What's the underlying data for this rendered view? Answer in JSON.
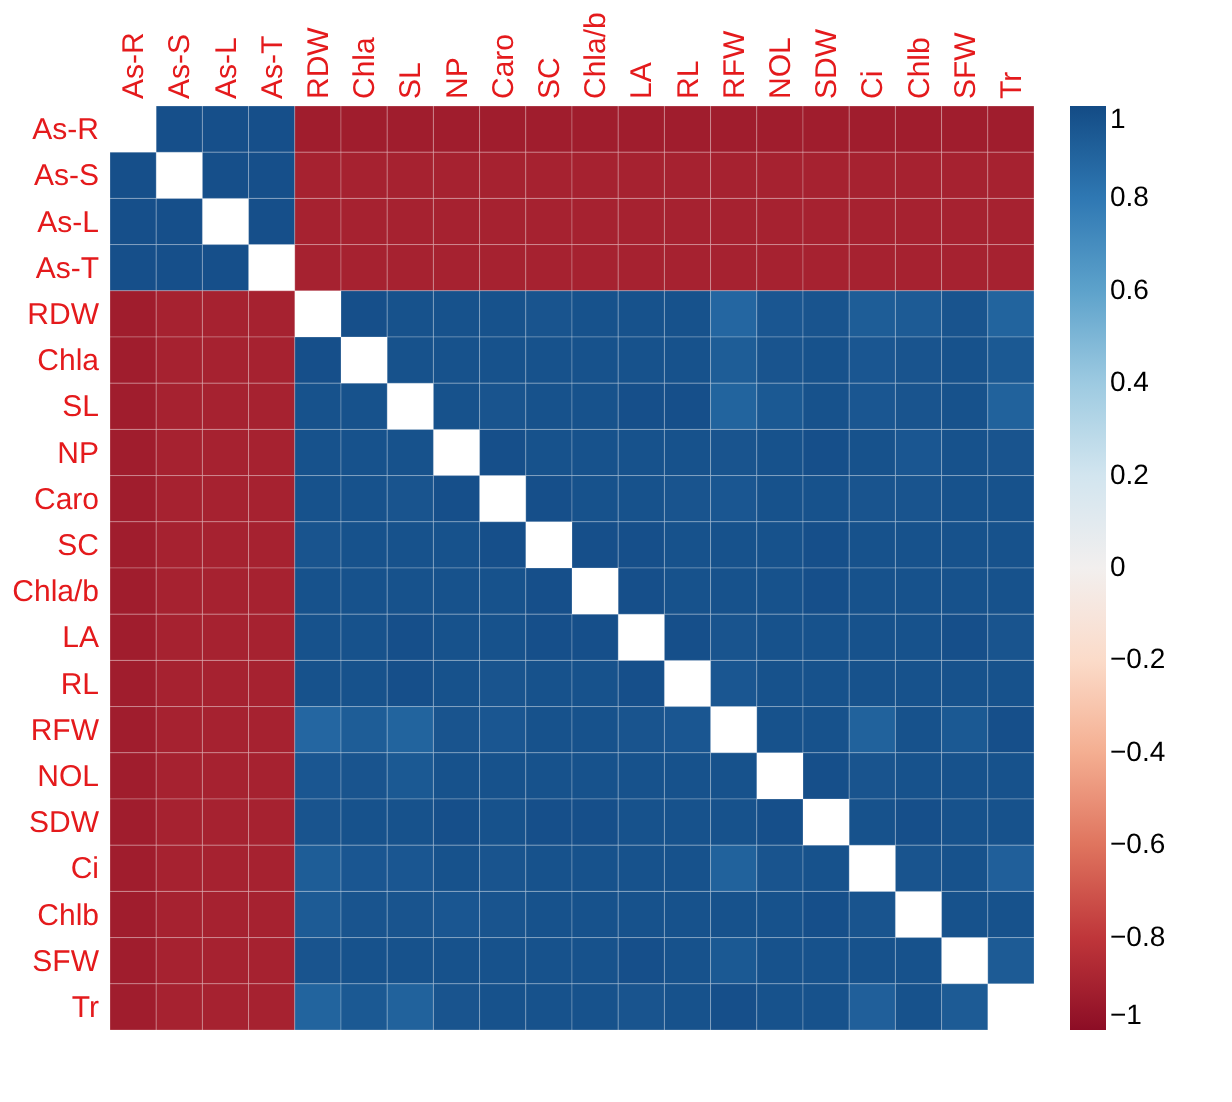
{
  "chart_data": {
    "type": "heatmap",
    "categories": [
      "As-R",
      "As-S",
      "As-L",
      "As-T",
      "RDW",
      "Chla",
      "SL",
      "NP",
      "Caro",
      "SC",
      "Chla/b",
      "LA",
      "RL",
      "RFW",
      "NOL",
      "SDW",
      "Ci",
      "Chlb",
      "SFW",
      "Tr"
    ],
    "y_categories": [
      "As-R",
      "As-S",
      "As-L",
      "As-T",
      "RDW",
      "Chla",
      "SL",
      "NP",
      "Caro",
      "SC",
      "Chla/b",
      "LA",
      "RL",
      "RFW",
      "NOL",
      "SDW",
      "Ci",
      "Chlb",
      "SFW",
      "Tr"
    ],
    "cells": [
      [
        null,
        0.98,
        0.98,
        0.98,
        -0.92,
        -0.92,
        -0.92,
        -0.92,
        -0.92,
        -0.92,
        -0.92,
        -0.92,
        -0.92,
        -0.92,
        -0.92,
        -0.92,
        -0.92,
        -0.92,
        -0.92,
        -0.92
      ],
      [
        0.98,
        null,
        0.98,
        0.98,
        -0.9,
        -0.9,
        -0.9,
        -0.9,
        -0.9,
        -0.9,
        -0.9,
        -0.9,
        -0.9,
        -0.9,
        -0.9,
        -0.9,
        -0.9,
        -0.9,
        -0.9,
        -0.9
      ],
      [
        0.98,
        0.98,
        null,
        0.98,
        -0.9,
        -0.9,
        -0.9,
        -0.9,
        -0.9,
        -0.9,
        -0.9,
        -0.9,
        -0.9,
        -0.9,
        -0.9,
        -0.9,
        -0.9,
        -0.9,
        -0.9,
        -0.9
      ],
      [
        0.98,
        0.98,
        0.98,
        null,
        -0.9,
        -0.9,
        -0.9,
        -0.9,
        -0.9,
        -0.9,
        -0.9,
        -0.9,
        -0.9,
        -0.9,
        -0.9,
        -0.9,
        -0.9,
        -0.9,
        -0.9,
        -0.9
      ],
      [
        -0.92,
        -0.9,
        -0.9,
        -0.9,
        null,
        0.98,
        0.97,
        0.97,
        0.97,
        0.96,
        0.97,
        0.97,
        0.97,
        0.88,
        0.95,
        0.96,
        0.92,
        0.93,
        0.96,
        0.89
      ],
      [
        -0.92,
        -0.9,
        -0.9,
        -0.9,
        0.98,
        null,
        0.97,
        0.97,
        0.97,
        0.97,
        0.97,
        0.97,
        0.97,
        0.92,
        0.96,
        0.97,
        0.95,
        0.96,
        0.97,
        0.94
      ],
      [
        -0.92,
        -0.9,
        -0.9,
        -0.9,
        0.97,
        0.97,
        null,
        0.97,
        0.96,
        0.97,
        0.97,
        0.98,
        0.98,
        0.89,
        0.94,
        0.97,
        0.95,
        0.96,
        0.97,
        0.9
      ],
      [
        -0.92,
        -0.9,
        -0.9,
        -0.9,
        0.97,
        0.97,
        0.97,
        null,
        0.98,
        0.97,
        0.97,
        0.97,
        0.97,
        0.96,
        0.97,
        0.98,
        0.97,
        0.95,
        0.97,
        0.96
      ],
      [
        -0.92,
        -0.9,
        -0.9,
        -0.9,
        0.97,
        0.97,
        0.96,
        0.98,
        null,
        0.98,
        0.97,
        0.97,
        0.96,
        0.95,
        0.97,
        0.97,
        0.96,
        0.96,
        0.97,
        0.97
      ],
      [
        -0.92,
        -0.9,
        -0.9,
        -0.9,
        0.96,
        0.97,
        0.97,
        0.97,
        0.98,
        null,
        0.98,
        0.98,
        0.97,
        0.97,
        0.97,
        0.98,
        0.97,
        0.97,
        0.97,
        0.97
      ],
      [
        -0.92,
        -0.9,
        -0.9,
        -0.9,
        0.97,
        0.97,
        0.97,
        0.97,
        0.97,
        0.98,
        null,
        0.98,
        0.97,
        0.97,
        0.97,
        0.98,
        0.97,
        0.97,
        0.97,
        0.97
      ],
      [
        -0.92,
        -0.9,
        -0.9,
        -0.9,
        0.97,
        0.97,
        0.98,
        0.97,
        0.97,
        0.98,
        0.98,
        null,
        0.98,
        0.96,
        0.97,
        0.97,
        0.97,
        0.97,
        0.98,
        0.96
      ],
      [
        -0.92,
        -0.9,
        -0.9,
        -0.9,
        0.97,
        0.97,
        0.98,
        0.97,
        0.96,
        0.97,
        0.97,
        0.98,
        null,
        0.95,
        0.97,
        0.97,
        0.97,
        0.97,
        0.97,
        0.97
      ],
      [
        -0.92,
        -0.9,
        -0.9,
        -0.9,
        0.88,
        0.92,
        0.89,
        0.96,
        0.95,
        0.97,
        0.97,
        0.96,
        0.95,
        null,
        0.97,
        0.97,
        0.9,
        0.97,
        0.94,
        0.98
      ],
      [
        -0.92,
        -0.9,
        -0.9,
        -0.9,
        0.95,
        0.96,
        0.94,
        0.97,
        0.97,
        0.97,
        0.97,
        0.97,
        0.97,
        0.97,
        null,
        0.98,
        0.96,
        0.97,
        0.97,
        0.97
      ],
      [
        -0.92,
        -0.9,
        -0.9,
        -0.9,
        0.96,
        0.97,
        0.97,
        0.98,
        0.97,
        0.98,
        0.98,
        0.97,
        0.97,
        0.97,
        0.98,
        null,
        0.97,
        0.98,
        0.97,
        0.97
      ],
      [
        -0.92,
        -0.9,
        -0.9,
        -0.9,
        0.92,
        0.95,
        0.95,
        0.97,
        0.96,
        0.97,
        0.97,
        0.97,
        0.97,
        0.9,
        0.96,
        0.97,
        null,
        0.96,
        0.97,
        0.91
      ],
      [
        -0.92,
        -0.9,
        -0.9,
        -0.9,
        0.93,
        0.96,
        0.96,
        0.95,
        0.96,
        0.97,
        0.97,
        0.97,
        0.97,
        0.97,
        0.97,
        0.98,
        0.96,
        null,
        0.97,
        0.97
      ],
      [
        -0.92,
        -0.9,
        -0.9,
        -0.9,
        0.96,
        0.97,
        0.97,
        0.97,
        0.97,
        0.97,
        0.97,
        0.98,
        0.97,
        0.94,
        0.97,
        0.97,
        0.97,
        0.97,
        null,
        0.93
      ],
      [
        -0.92,
        -0.9,
        -0.9,
        -0.9,
        0.89,
        0.94,
        0.9,
        0.96,
        0.97,
        0.97,
        0.97,
        0.96,
        0.97,
        0.98,
        0.97,
        0.97,
        0.91,
        0.97,
        0.93,
        null
      ]
    ],
    "clim": [
      -1,
      1
    ],
    "cticks": [
      1,
      0.8,
      0.6,
      0.4,
      0.2,
      0,
      {
        "value": -0.2,
        "label": "−0.2"
      },
      {
        "value": -0.4,
        "label": "−0.4"
      },
      {
        "value": -0.6,
        "label": "−0.6"
      },
      {
        "value": -0.8,
        "label": "−0.8"
      },
      {
        "value": -1,
        "label": "−1"
      }
    ]
  }
}
